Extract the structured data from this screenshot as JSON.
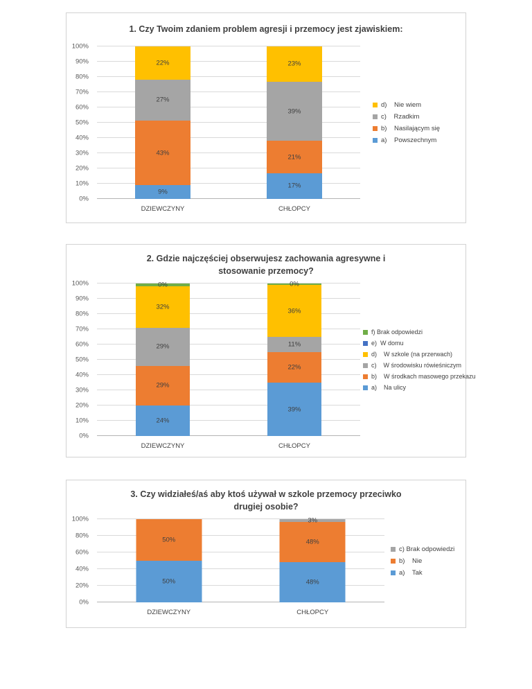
{
  "page": {
    "background": "#ffffff"
  },
  "chart_data": [
    {
      "type": "bar",
      "stacked": true,
      "grid": true,
      "legend_position": "right",
      "legend_order": "reversed",
      "title": "1. Czy Twoim zdaniem problem agresji i przemocy jest zjawiskiem:",
      "categories": [
        "DZIEWCZYNY",
        "CHŁOPCY"
      ],
      "y_ticks": [
        "100%",
        "90%",
        "80%",
        "70%",
        "60%",
        "50%",
        "40%",
        "30%",
        "20%",
        "10%",
        "0%"
      ],
      "ylim": [
        0,
        100
      ],
      "series": [
        {
          "name": "a)    Powszechnym",
          "color": "#5B9BD5",
          "values": [
            9,
            17
          ],
          "labels": [
            "9%",
            "17%"
          ],
          "heights": [
            9,
            17
          ]
        },
        {
          "name": "b)    Nasilającym się",
          "color": "#ED7D31",
          "values": [
            43,
            21
          ],
          "labels": [
            "43%",
            "21%"
          ],
          "heights": [
            43,
            21
          ]
        },
        {
          "name": "c)    Rzadkim",
          "color": "#A5A5A5",
          "values": [
            27,
            39
          ],
          "labels": [
            "27%",
            "39%"
          ],
          "heights": [
            27,
            39
          ]
        },
        {
          "name": "d)    Nie wiem",
          "color": "#FFC000",
          "values": [
            22,
            23
          ],
          "labels": [
            "22%",
            "23%"
          ],
          "heights": [
            22,
            23
          ]
        }
      ]
    },
    {
      "type": "bar",
      "stacked": true,
      "grid": true,
      "legend_position": "right",
      "legend_order": "reversed",
      "title": "2. Gdzie najczęściej obserwujesz zachowania agresywne i stosowanie przemocy?",
      "categories": [
        "DZIEWCZYNY",
        "CHŁOPCY"
      ],
      "y_ticks": [
        "100%",
        "90%",
        "80%",
        "70%",
        "60%",
        "50%",
        "40%",
        "30%",
        "20%",
        "10%",
        "0%"
      ],
      "ylim": [
        0,
        100
      ],
      "series": [
        {
          "name": "a)    Na ulicy",
          "color": "#5B9BD5",
          "values": [
            24,
            39
          ],
          "labels": [
            "24%",
            "39%"
          ],
          "heights": [
            20,
            35
          ]
        },
        {
          "name": "b)    W środkach masowego przekazu",
          "color": "#ED7D31",
          "values": [
            29,
            22
          ],
          "labels": [
            "29%",
            "22%"
          ],
          "heights": [
            26,
            20
          ]
        },
        {
          "name": "c)    W środowisku rówieśniczym",
          "color": "#A5A5A5",
          "values": [
            29,
            11
          ],
          "labels": [
            "29%",
            "11%"
          ],
          "heights": [
            25,
            10
          ]
        },
        {
          "name": "d)    W szkole (na przerwach)",
          "color": "#FFC000",
          "values": [
            32,
            36
          ],
          "labels": [
            "32%",
            "36%"
          ],
          "heights": [
            27,
            34
          ]
        },
        {
          "name": "e)  W domu",
          "color": "#4472C4",
          "values": [
            0,
            0
          ],
          "labels": [
            null,
            null
          ],
          "heights": [
            0,
            0
          ]
        },
        {
          "name": "f) Brak odpowiedzi",
          "color": "#70AD47",
          "values": [
            0,
            0
          ],
          "labels": [
            "0%",
            "0%"
          ],
          "heights": [
            2,
            1
          ]
        }
      ]
    },
    {
      "type": "bar",
      "stacked": true,
      "grid": true,
      "legend_position": "right",
      "legend_order": "reversed",
      "title": "3. Czy widziałeś/aś aby ktoś używał w szkole przemocy przeciwko drugiej osobie?",
      "categories": [
        "DZIEWCZYNY",
        "CHŁOPCY"
      ],
      "y_ticks": [
        "100%",
        "80%",
        "60%",
        "40%",
        "20%",
        "0%"
      ],
      "ylim": [
        0,
        100
      ],
      "series": [
        {
          "name": "a)    Tak",
          "color": "#5B9BD5",
          "values": [
            50,
            48
          ],
          "labels": [
            "50%",
            "48%"
          ],
          "heights": [
            50,
            48
          ]
        },
        {
          "name": "b)    Nie",
          "color": "#ED7D31",
          "values": [
            50,
            48
          ],
          "labels": [
            "50%",
            "48%"
          ],
          "heights": [
            50,
            49
          ]
        },
        {
          "name": "c) Brak odpowiedzi",
          "color": "#A5A5A5",
          "values": [
            0,
            3
          ],
          "labels": [
            null,
            "3%"
          ],
          "heights": [
            0,
            3
          ]
        }
      ]
    }
  ]
}
